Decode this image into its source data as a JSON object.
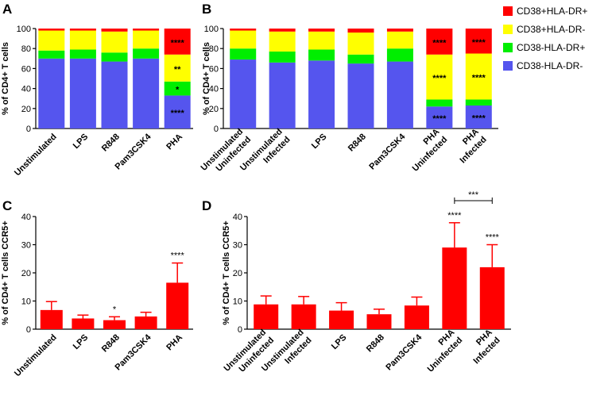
{
  "legend": [
    {
      "label": "CD38+HLA-DR+",
      "color": "#ff0000"
    },
    {
      "label": "CD38+HLA-DR-",
      "color": "#ffff00"
    },
    {
      "label": "CD38-HLA-DR+",
      "color": "#00ee00"
    },
    {
      "label": "CD38-HLA-DR-",
      "color": "#5555ee"
    }
  ],
  "chart_data": [
    {
      "panel": "A",
      "type": "bar",
      "stacked": true,
      "ylabel": "% of CD4+ T cells",
      "ylim": [
        0,
        100
      ],
      "yticks": [
        0,
        20,
        40,
        60,
        80,
        100
      ],
      "categories": [
        "Unstimulated",
        "LPS",
        "R848",
        "Pam3CSK4",
        "PHA"
      ],
      "series": [
        {
          "name": "CD38-HLA-DR-",
          "values": [
            70,
            70,
            67,
            70,
            33
          ]
        },
        {
          "name": "CD38-HLA-DR+",
          "values": [
            8,
            9,
            9,
            10,
            14
          ]
        },
        {
          "name": "CD38+HLA-DR-",
          "values": [
            20,
            19,
            21,
            18,
            27
          ]
        },
        {
          "name": "CD38+HLA-DR+",
          "values": [
            2,
            2,
            3,
            2,
            26
          ]
        }
      ],
      "annotations": [
        {
          "category": "PHA",
          "series": "CD38+HLA-DR+",
          "text": "****"
        },
        {
          "category": "PHA",
          "series": "CD38+HLA-DR-",
          "text": "**"
        },
        {
          "category": "PHA",
          "series": "CD38-HLA-DR+",
          "text": "*"
        },
        {
          "category": "PHA",
          "series": "CD38-HLA-DR-",
          "text": "****"
        }
      ]
    },
    {
      "panel": "B",
      "type": "bar",
      "stacked": true,
      "ylabel": "% of CD4+ T cells",
      "ylim": [
        0,
        100
      ],
      "yticks": [
        0,
        20,
        40,
        60,
        80,
        100
      ],
      "categories": [
        "Unstimulated Uninfected",
        "Unstimulated Infected",
        "LPS",
        "R848",
        "Pam3CSK4",
        "PHA Uninfected",
        "PHA Infected"
      ],
      "series": [
        {
          "name": "CD38-HLA-DR-",
          "values": [
            69,
            66,
            68,
            65,
            67,
            22,
            23
          ]
        },
        {
          "name": "CD38-HLA-DR+",
          "values": [
            11,
            11,
            11,
            9,
            13,
            7,
            6
          ]
        },
        {
          "name": "CD38+HLA-DR-",
          "values": [
            18,
            20,
            18,
            22,
            17,
            45,
            46
          ]
        },
        {
          "name": "CD38+HLA-DR+",
          "values": [
            2,
            3,
            3,
            4,
            3,
            26,
            25
          ]
        }
      ],
      "annotations": [
        {
          "category": "PHA Uninfected",
          "series": "CD38+HLA-DR+",
          "text": "****"
        },
        {
          "category": "PHA Uninfected",
          "series": "CD38+HLA-DR-",
          "text": "****"
        },
        {
          "category": "PHA Uninfected",
          "series": "CD38-HLA-DR-",
          "text": "****"
        },
        {
          "category": "PHA Infected",
          "series": "CD38+HLA-DR+",
          "text": "****"
        },
        {
          "category": "PHA Infected",
          "series": "CD38+HLA-DR-",
          "text": "****"
        },
        {
          "category": "PHA Infected",
          "series": "CD38-HLA-DR-",
          "text": "****"
        }
      ]
    },
    {
      "panel": "C",
      "type": "bar",
      "stacked": false,
      "ylabel": "% of CD4+ T cells CCR5+",
      "ylim": [
        0,
        40
      ],
      "yticks": [
        0,
        10,
        20,
        30,
        40
      ],
      "categories": [
        "Unstimulated",
        "LPS",
        "R848",
        "Pam3CSK4",
        "PHA"
      ],
      "values": [
        6.8,
        3.8,
        3.2,
        4.5,
        16.5
      ],
      "errors": [
        3.0,
        1.2,
        1.2,
        1.5,
        7.0
      ],
      "color": "#ff0000",
      "annotations": [
        {
          "category": "R848",
          "text": "*"
        },
        {
          "category": "PHA",
          "text": "****"
        }
      ]
    },
    {
      "panel": "D",
      "type": "bar",
      "stacked": false,
      "ylabel": "% of CD4+ T cells CCR5+",
      "ylim": [
        0,
        40
      ],
      "yticks": [
        0,
        10,
        20,
        30,
        40
      ],
      "categories": [
        "Unstimulated Uninfected",
        "Unstimulated Infected",
        "LPS",
        "R848",
        "Pam3CSK4",
        "PHA Uninfected",
        "PHA Infected"
      ],
      "values": [
        8.8,
        8.8,
        6.6,
        5.3,
        8.4,
        29.0,
        22.0
      ],
      "errors": [
        3.0,
        2.8,
        2.8,
        1.8,
        3.0,
        8.8,
        8.0
      ],
      "color": "#ff0000",
      "annotations": [
        {
          "category": "PHA Uninfected",
          "text": "****"
        },
        {
          "category": "PHA Infected",
          "text": "****"
        }
      ],
      "bracket": {
        "from": "PHA Uninfected",
        "to": "PHA Infected",
        "text": "***"
      }
    }
  ]
}
